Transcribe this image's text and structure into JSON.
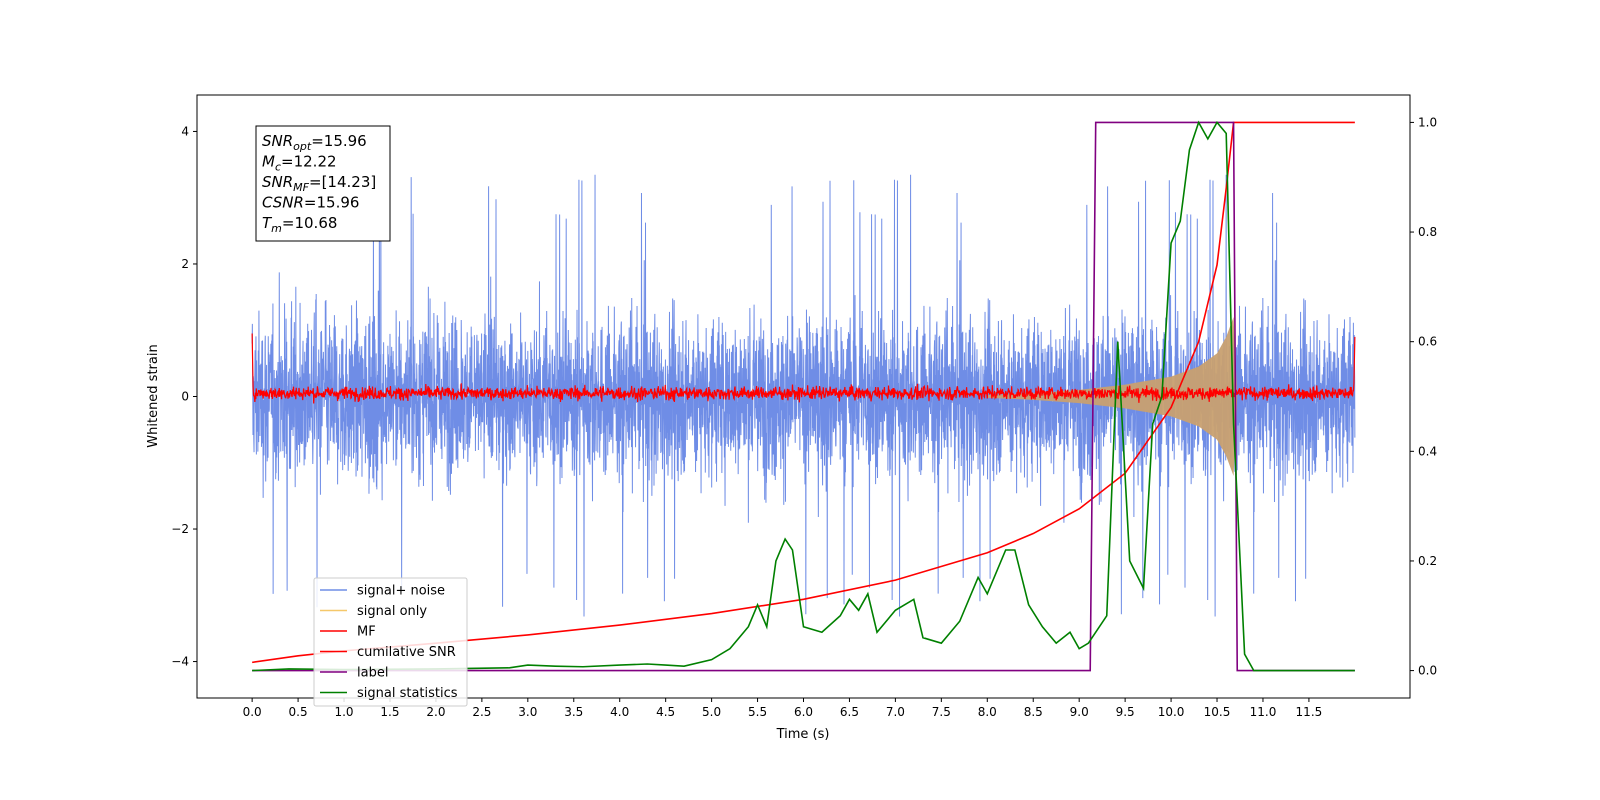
{
  "chart_data": {
    "type": "line",
    "xlabel": "Time (s)",
    "ylabel": "Whitened strain",
    "xlim": [
      -0.6,
      12.6
    ],
    "ylim": [
      -4.55,
      4.55
    ],
    "ylim_right": [
      -0.05,
      1.05
    ],
    "x_ticks": [
      "0.0",
      "0.5",
      "1.0",
      "1.5",
      "2.0",
      "2.5",
      "3.0",
      "3.5",
      "4.0",
      "4.5",
      "5.0",
      "5.5",
      "6.0",
      "6.5",
      "7.0",
      "7.5",
      "8.0",
      "8.5",
      "9.0",
      "9.5",
      "10.0",
      "10.5",
      "11.0",
      "11.5"
    ],
    "y_ticks_left": [
      "4",
      "2",
      "0",
      "−2",
      "−4"
    ],
    "y_ticks_right": [
      "1.0",
      "0.8",
      "0.6",
      "0.4",
      "0.2",
      "0.0"
    ],
    "grid": false,
    "legend_position": "lower-left",
    "annotation": [
      {
        "sym": "SNR",
        "sub": "opt",
        "val": "=15.96"
      },
      {
        "sym": "M",
        "sub": "c",
        "val": "=12.22"
      },
      {
        "sym": "SNR",
        "sub": "MF",
        "val": "=[14.23]"
      },
      {
        "sym": "CSNR",
        "sub": "",
        "val": "=15.96"
      },
      {
        "sym": "T",
        "sub": "m",
        "val": "=10.68"
      }
    ],
    "series": [
      {
        "name": "signal+ noise",
        "axis": "left",
        "color": "#6f8de6",
        "description_values": {
          "x_range": [
            0,
            12
          ],
          "approx_amplitude": 2.5,
          "peak_amplitude": 3.4
        }
      },
      {
        "name": "signal only",
        "axis": "left",
        "color": "#f5c86a",
        "envelope": {
          "x": [
            8.0,
            8.5,
            9.0,
            9.5,
            10.0,
            10.3,
            10.5,
            10.6,
            10.68,
            10.72
          ],
          "amp": [
            0.02,
            0.05,
            0.1,
            0.18,
            0.3,
            0.45,
            0.65,
            0.9,
            1.2,
            0.0
          ]
        }
      },
      {
        "name": "MF",
        "axis": "left",
        "color": "#ff0000",
        "description_values": {
          "x_range": [
            0,
            12
          ],
          "baseline": 0.05,
          "noise_amplitude": 0.12
        }
      },
      {
        "name": "cumilative SNR",
        "axis": "right",
        "color": "#ff0000",
        "x": [
          0.0,
          0.5,
          1.0,
          2.0,
          3.0,
          4.0,
          5.0,
          6.0,
          7.0,
          8.0,
          8.5,
          9.0,
          9.5,
          10.0,
          10.3,
          10.5,
          10.6,
          10.68,
          10.7,
          11.0,
          12.0
        ],
        "y": [
          0.015,
          0.027,
          0.036,
          0.05,
          0.065,
          0.083,
          0.104,
          0.13,
          0.165,
          0.215,
          0.25,
          0.295,
          0.36,
          0.48,
          0.6,
          0.74,
          0.88,
          1.0,
          1.0,
          1.0,
          1.0
        ]
      },
      {
        "name": "label",
        "axis": "right",
        "color": "#800080",
        "x": [
          0.0,
          9.12,
          9.18,
          10.68,
          10.72,
          12.0
        ],
        "y": [
          0.0,
          0.0,
          1.0,
          1.0,
          0.0,
          0.0
        ]
      },
      {
        "name": "signal statistics",
        "axis": "right",
        "color": "#008000",
        "x": [
          0.0,
          0.4,
          1.0,
          2.0,
          2.8,
          3.0,
          3.3,
          3.6,
          4.0,
          4.3,
          4.5,
          4.7,
          5.0,
          5.2,
          5.4,
          5.5,
          5.6,
          5.7,
          5.8,
          5.88,
          6.0,
          6.2,
          6.4,
          6.5,
          6.6,
          6.7,
          6.8,
          7.0,
          7.1,
          7.2,
          7.3,
          7.5,
          7.7,
          7.9,
          8.0,
          8.2,
          8.3,
          8.45,
          8.6,
          8.75,
          8.9,
          9.0,
          9.1,
          9.3,
          9.42,
          9.55,
          9.7,
          9.8,
          9.9,
          10.0,
          10.1,
          10.2,
          10.3,
          10.4,
          10.5,
          10.6,
          10.68,
          10.8,
          10.9,
          11.0,
          12.0
        ],
        "y": [
          0.0,
          0.003,
          0.002,
          0.003,
          0.005,
          0.01,
          0.008,
          0.007,
          0.01,
          0.012,
          0.01,
          0.008,
          0.02,
          0.04,
          0.08,
          0.12,
          0.08,
          0.2,
          0.24,
          0.22,
          0.08,
          0.07,
          0.1,
          0.13,
          0.11,
          0.14,
          0.07,
          0.11,
          0.12,
          0.13,
          0.06,
          0.05,
          0.09,
          0.17,
          0.14,
          0.22,
          0.22,
          0.12,
          0.08,
          0.05,
          0.07,
          0.04,
          0.05,
          0.1,
          0.6,
          0.2,
          0.15,
          0.45,
          0.5,
          0.78,
          0.82,
          0.95,
          1.0,
          0.97,
          1.0,
          0.98,
          0.45,
          0.03,
          0.0,
          0.0,
          0.0
        ]
      }
    ]
  }
}
